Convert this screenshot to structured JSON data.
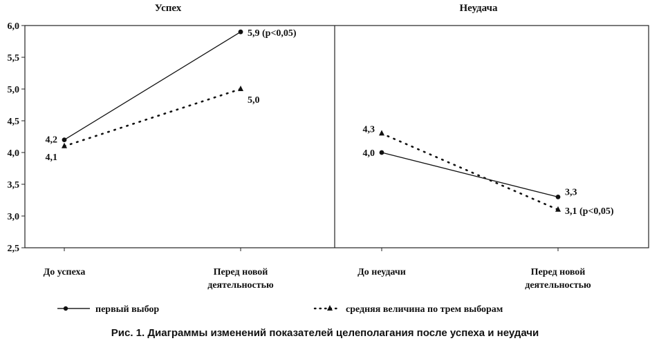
{
  "chart_data": {
    "type": "line",
    "ylim": [
      2.5,
      6.0
    ],
    "yticks": [
      "2,5",
      "3,0",
      "3,5",
      "4,0",
      "4,5",
      "5,0",
      "5,5",
      "6,0"
    ],
    "yvalues": [
      2.5,
      3.0,
      3.5,
      4.0,
      4.5,
      5.0,
      5.5,
      6.0
    ],
    "legend_position": "bottom",
    "panels": [
      {
        "title": "Успех",
        "categories": [
          "До успеха",
          "Перед новой деятельностью"
        ],
        "category_lines": [
          [
            "До успеха"
          ],
          [
            "Перед новой",
            "деятельностью"
          ]
        ],
        "series": [
          {
            "name": "первый выбор",
            "values": [
              4.2,
              5.9
            ],
            "labels": [
              "4,2",
              "5,9 (p<0,05)"
            ],
            "style": "solid",
            "marker": "circle"
          },
          {
            "name": "средняя величина по трем выборам",
            "values": [
              4.1,
              5.0
            ],
            "labels": [
              "4,1",
              "5,0"
            ],
            "style": "dotted",
            "marker": "triangle"
          }
        ]
      },
      {
        "title": "Неудача",
        "categories": [
          "До неудачи",
          "Перед новой деятельностью"
        ],
        "category_lines": [
          [
            "До неудачи"
          ],
          [
            "Перед новой",
            "деятельностью"
          ]
        ],
        "series": [
          {
            "name": "первый выбор",
            "values": [
              4.0,
              3.3
            ],
            "labels": [
              "4,0",
              "3,3"
            ],
            "style": "solid",
            "marker": "circle"
          },
          {
            "name": "средняя величина по трем выборам",
            "values": [
              4.3,
              3.1
            ],
            "labels": [
              "4,3",
              "3,1 (p<0,05)"
            ],
            "style": "dotted",
            "marker": "triangle"
          }
        ]
      }
    ]
  },
  "legend": {
    "solid_label": "первый выбор",
    "dotted_label": "средняя величина по трем выборам"
  },
  "caption": "Рис. 1. Диаграммы изменений показателей целеполагания после успеха и неудачи"
}
